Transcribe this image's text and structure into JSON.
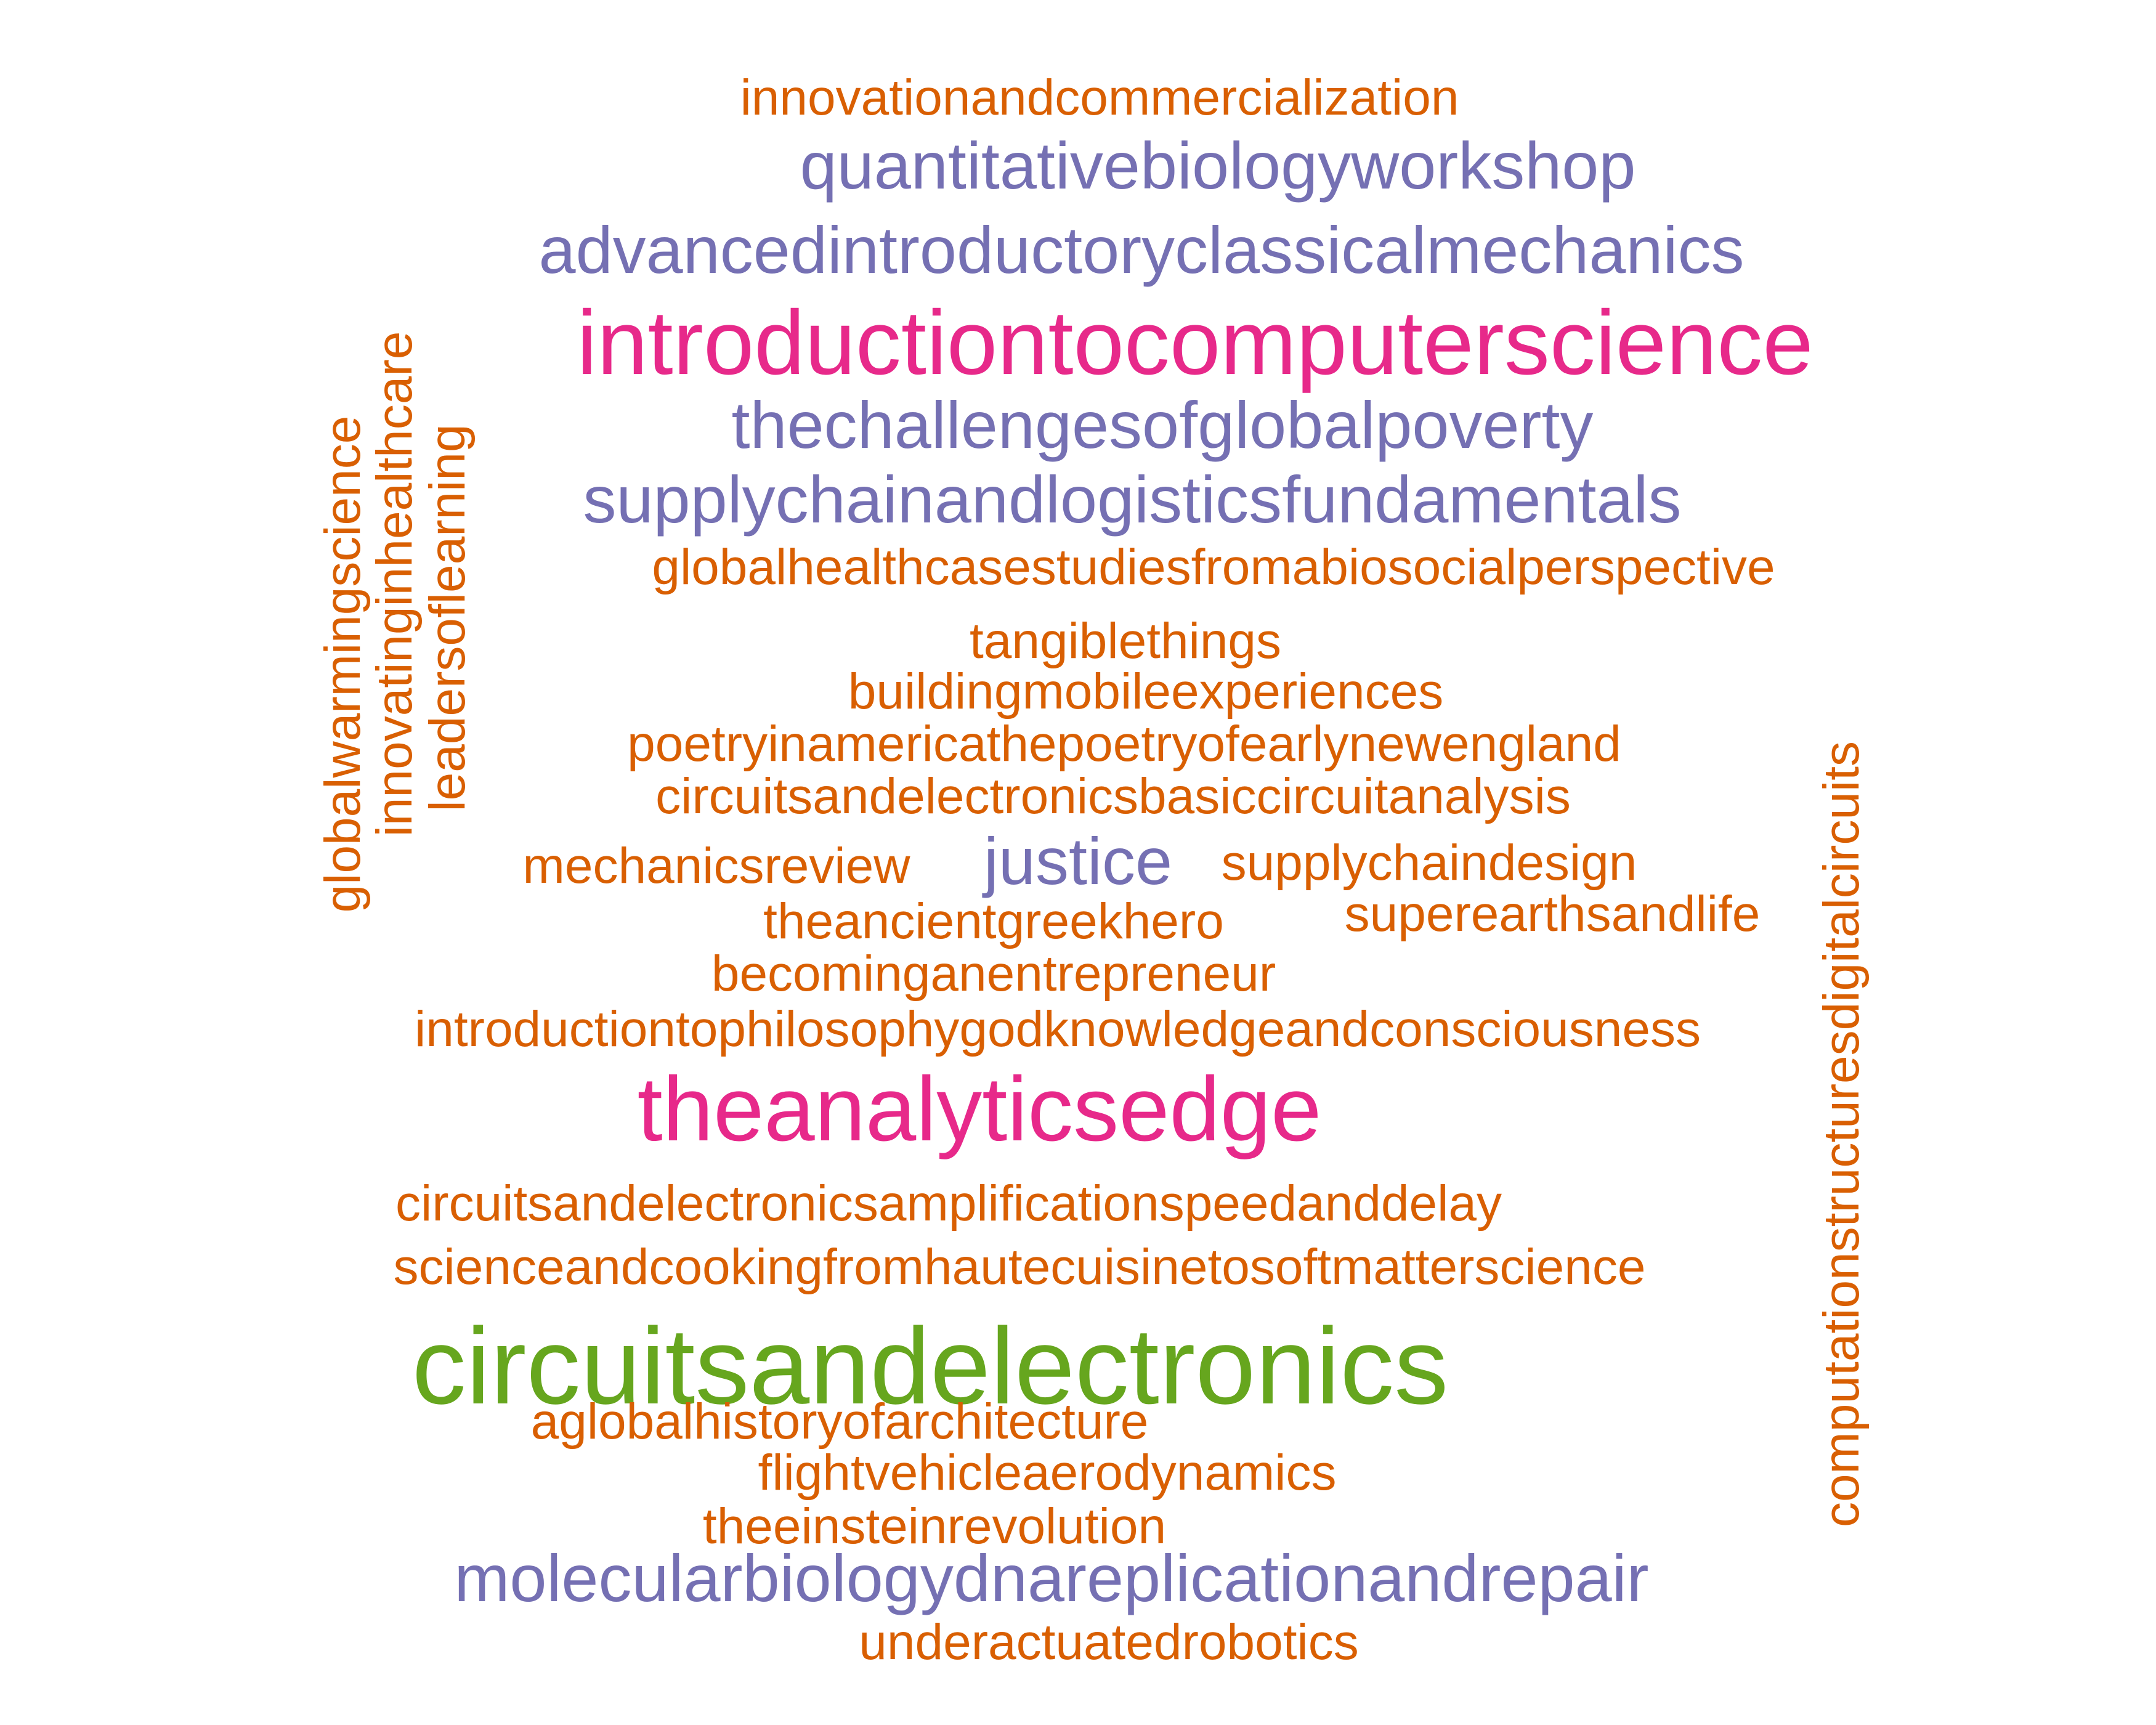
{
  "palette": {
    "orange": "#D95F02",
    "purple": "#7570B3",
    "pink": "#E7298A",
    "green": "#66A61E"
  },
  "words": [
    {
      "id": "w01",
      "text": "innovationandcommercialization",
      "color": "orange"
    },
    {
      "id": "w02",
      "text": "quantitativebiologyworkshop",
      "color": "purple"
    },
    {
      "id": "w03",
      "text": "advancedintroductoryclassicalmechanics",
      "color": "purple"
    },
    {
      "id": "w04",
      "text": "introductiontocomputerscience",
      "color": "pink"
    },
    {
      "id": "w05",
      "text": "thechallengesofglobalpoverty",
      "color": "purple"
    },
    {
      "id": "w06",
      "text": "supplychainandlogisticsfundamentals",
      "color": "purple"
    },
    {
      "id": "w07",
      "text": "globalhealthcasestudiesfromabiosocialperspective",
      "color": "orange"
    },
    {
      "id": "w08",
      "text": "tangiblethings",
      "color": "orange"
    },
    {
      "id": "w09",
      "text": "buildingmobileexperiences",
      "color": "orange"
    },
    {
      "id": "w10",
      "text": "poetryinamericathepoetryofearlynewengland",
      "color": "orange"
    },
    {
      "id": "w11",
      "text": "circuitsandelectronicsbasiccircuitanalysis",
      "color": "orange"
    },
    {
      "id": "w12",
      "text": "mechanicsreview",
      "color": "orange"
    },
    {
      "id": "w13",
      "text": "justice",
      "color": "purple"
    },
    {
      "id": "w14",
      "text": "supplychaindesign",
      "color": "orange"
    },
    {
      "id": "w15",
      "text": "theancientgreekhero",
      "color": "orange"
    },
    {
      "id": "w16",
      "text": "superearthsandlife",
      "color": "orange"
    },
    {
      "id": "w17",
      "text": "becominganentrepreneur",
      "color": "orange"
    },
    {
      "id": "w18",
      "text": "introductiontophilosophygodknowledgeandconsciousness",
      "color": "orange"
    },
    {
      "id": "w19",
      "text": "theanalyticsedge",
      "color": "pink"
    },
    {
      "id": "w20",
      "text": "circuitsandelectronicsamplificationspeedanddelay",
      "color": "orange"
    },
    {
      "id": "w21",
      "text": "scienceandcookingfromhautecuisinetosoftmatterscience",
      "color": "orange"
    },
    {
      "id": "w22",
      "text": "circuitsandelectronics",
      "color": "green"
    },
    {
      "id": "w23",
      "text": "aglobalhistoryofarchitecture",
      "color": "orange"
    },
    {
      "id": "w24",
      "text": "flightvehicleaerodynamics",
      "color": "orange"
    },
    {
      "id": "w25",
      "text": "theeinsteinrevolution",
      "color": "orange"
    },
    {
      "id": "w26",
      "text": "molecularbiologydnareplicationandrepair",
      "color": "purple"
    },
    {
      "id": "w27",
      "text": "underactuatedrobotics",
      "color": "orange"
    },
    {
      "id": "w28",
      "text": "globalwarmingscience",
      "color": "orange"
    },
    {
      "id": "w29",
      "text": "innovatinginhealthcare",
      "color": "orange"
    },
    {
      "id": "w30",
      "text": "leadersoflearning",
      "color": "orange"
    },
    {
      "id": "w31",
      "text": "computationstructuresdigitalcircuits",
      "color": "orange"
    }
  ]
}
